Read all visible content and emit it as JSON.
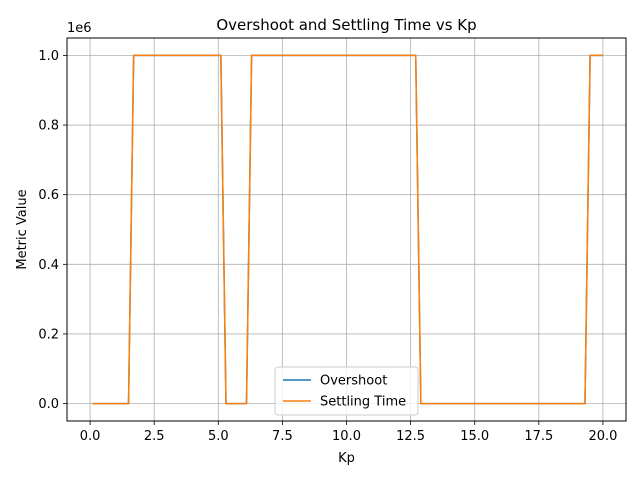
{
  "chart_data": {
    "type": "line",
    "title": "Overshoot and Settling Time vs Kp",
    "xlabel": "Kp",
    "ylabel": "Metric Value",
    "offset_text": "1e6",
    "y_scale": 1000000,
    "xlim": [
      -0.9,
      20.9
    ],
    "ylim": [
      -50000,
      1050000
    ],
    "xticks": [
      0.0,
      2.5,
      5.0,
      7.5,
      10.0,
      12.5,
      15.0,
      17.5,
      20.0
    ],
    "xtick_labels": [
      "0.0",
      "2.5",
      "5.0",
      "7.5",
      "10.0",
      "12.5",
      "15.0",
      "17.5",
      "20.0"
    ],
    "yticks": [
      0,
      200000,
      400000,
      600000,
      800000,
      1000000
    ],
    "ytick_labels": [
      "0.0",
      "0.2",
      "0.4",
      "0.6",
      "0.8",
      "1.0"
    ],
    "grid": true,
    "legend_position": "lower-center",
    "series": [
      {
        "name": "Overshoot",
        "color": "#1f77b4",
        "x": [
          0.1,
          1.5,
          1.7,
          5.1,
          5.3,
          6.1,
          6.3,
          12.7,
          12.9,
          19.3,
          19.5,
          20.0
        ],
        "y": [
          0,
          0,
          1000000,
          1000000,
          0,
          0,
          1000000,
          1000000,
          0,
          0,
          1000000,
          1000000
        ]
      },
      {
        "name": "Settling Time",
        "color": "#ff7f0e",
        "x": [
          0.1,
          1.5,
          1.7,
          5.1,
          5.3,
          6.1,
          6.3,
          12.7,
          12.9,
          19.3,
          19.5,
          20.0
        ],
        "y": [
          0,
          0,
          1000000,
          1000000,
          0,
          0,
          1000000,
          1000000,
          0,
          0,
          1000000,
          1000000
        ]
      }
    ]
  }
}
